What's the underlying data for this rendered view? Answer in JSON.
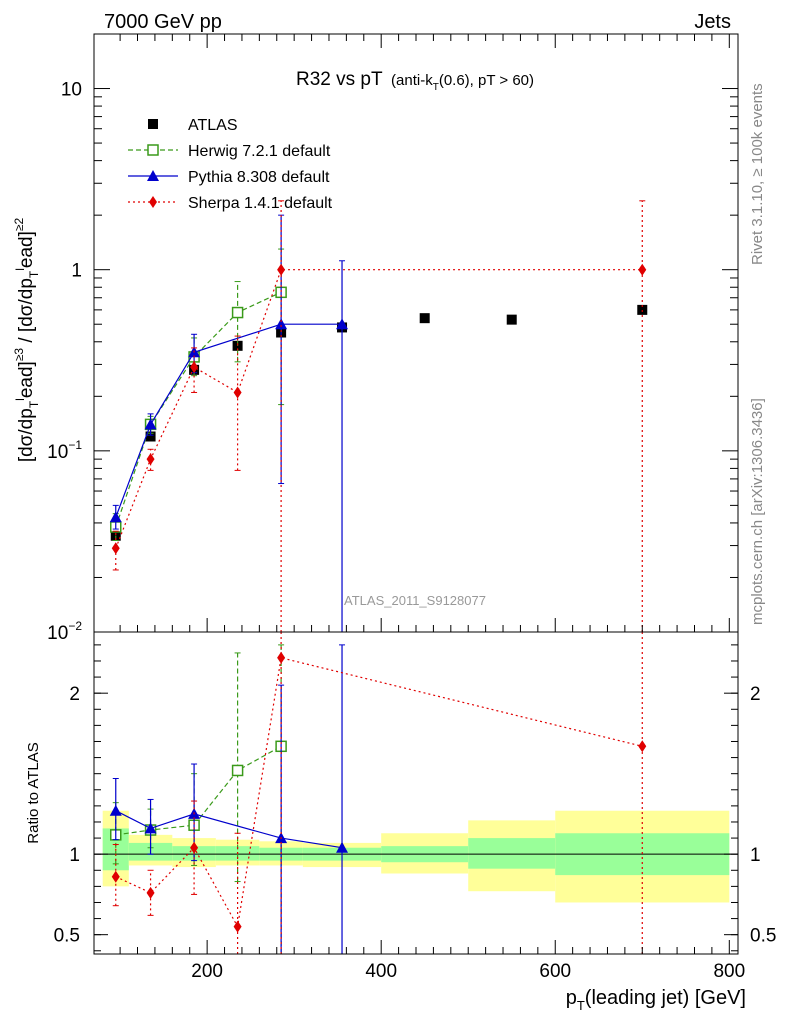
{
  "header": {
    "left": "7000 GeV pp",
    "right": "Jets"
  },
  "side_labels": {
    "top": "Rivet 3.1.10, ≥ 100k events",
    "bottom": "mcplots.cern.ch [arXiv:1306.3436]"
  },
  "colors": {
    "atlas": "#000000",
    "herwig": "#3a9a1a",
    "pythia": "#0000cc",
    "sherpa": "#e00000",
    "band_inner": "#99ff99",
    "band_outer": "#ffff99"
  },
  "chart_data": [
    {
      "type": "scatter",
      "title": "R32 vs pT",
      "title_sub": "(anti-k",
      "title_sub_index": "T",
      "title_sub_rest": "(0.6), pT > 60)",
      "ylabel": "[dσ/dp_T^lead]^≥3 / [dσ/dp_T^lead]^≥2",
      "yscale": "log",
      "ylim": [
        0.01,
        20
      ],
      "xlim": [
        70,
        810
      ],
      "y_ticks": [
        {
          "value": 0.01,
          "label": "10",
          "exp": "−2"
        },
        {
          "value": 0.1,
          "label": "10",
          "exp": "−1"
        },
        {
          "value": 1,
          "label": "1",
          "exp": ""
        },
        {
          "value": 10,
          "label": "10",
          "exp": ""
        }
      ],
      "watermark": "ATLAS_2011_S9128077",
      "legend_position": "top-left",
      "series": [
        {
          "name": "ATLAS",
          "marker": "square",
          "points": [
            {
              "x": 95,
              "y": 0.034
            },
            {
              "x": 135,
              "y": 0.12
            },
            {
              "x": 185,
              "y": 0.28
            },
            {
              "x": 235,
              "y": 0.38
            },
            {
              "x": 285,
              "y": 0.45
            },
            {
              "x": 355,
              "y": 0.48
            },
            {
              "x": 450,
              "y": 0.54
            },
            {
              "x": 550,
              "y": 0.53
            },
            {
              "x": 700,
              "y": 0.6
            }
          ]
        },
        {
          "name": "Herwig 7.2.1 default",
          "marker": "open-square",
          "line": "dashed",
          "points": [
            {
              "x": 95,
              "y": 0.038,
              "lo": 0.032,
              "hi": 0.045
            },
            {
              "x": 135,
              "y": 0.14,
              "lo": 0.125,
              "hi": 0.155
            },
            {
              "x": 185,
              "y": 0.33,
              "lo": 0.26,
              "hi": 0.42
            },
            {
              "x": 235,
              "y": 0.58,
              "lo": 0.31,
              "hi": 0.86
            },
            {
              "x": 285,
              "y": 0.75,
              "lo": 0.18,
              "hi": 1.3
            }
          ]
        },
        {
          "name": "Pythia 8.308 default",
          "marker": "triangle",
          "line": "solid",
          "points": [
            {
              "x": 95,
              "y": 0.043,
              "lo": 0.037,
              "hi": 0.05
            },
            {
              "x": 135,
              "y": 0.14,
              "lo": 0.122,
              "hi": 0.16
            },
            {
              "x": 185,
              "y": 0.35,
              "lo": 0.27,
              "hi": 0.44
            },
            {
              "x": 285,
              "y": 0.5,
              "lo": 0.066,
              "hi": 2.0
            },
            {
              "x": 355,
              "y": 0.5,
              "lo": 0.001,
              "hi": 1.12
            }
          ]
        },
        {
          "name": "Sherpa 1.4.1 default",
          "marker": "diamond",
          "line": "dotted",
          "points": [
            {
              "x": 95,
              "y": 0.029,
              "lo": 0.022,
              "hi": 0.036
            },
            {
              "x": 135,
              "y": 0.09,
              "lo": 0.078,
              "hi": 0.102
            },
            {
              "x": 185,
              "y": 0.29,
              "lo": 0.21,
              "hi": 0.37
            },
            {
              "x": 235,
              "y": 0.21,
              "lo": 0.078,
              "hi": 0.43
            },
            {
              "x": 285,
              "y": 1.0,
              "lo": 0.001,
              "hi": 2.4
            },
            {
              "x": 700,
              "y": 1.0,
              "lo": 0.001,
              "hi": 2.4
            }
          ]
        }
      ]
    },
    {
      "type": "scatter",
      "ylabel": "Ratio to ATLAS",
      "xlabel": "p_T(leading jet) [GeV]",
      "ylim": [
        0.38,
        2.38
      ],
      "xlim": [
        70,
        810
      ],
      "x_ticks": [
        200,
        400,
        600,
        800
      ],
      "y_ticks": [
        {
          "value": 0.5,
          "label": "0.5"
        },
        {
          "value": 1,
          "label": "1"
        },
        {
          "value": 2,
          "label": "2"
        }
      ],
      "bands": [
        {
          "x0": 80,
          "x1": 110,
          "inner": [
            0.9,
            1.16
          ],
          "outer": [
            0.8,
            1.27
          ]
        },
        {
          "x0": 110,
          "x1": 160,
          "inner": [
            0.96,
            1.07
          ],
          "outer": [
            0.93,
            1.12
          ]
        },
        {
          "x0": 160,
          "x1": 210,
          "inner": [
            0.96,
            1.05
          ],
          "outer": [
            0.92,
            1.1
          ]
        },
        {
          "x0": 210,
          "x1": 260,
          "inner": [
            0.96,
            1.05
          ],
          "outer": [
            0.93,
            1.09
          ]
        },
        {
          "x0": 260,
          "x1": 310,
          "inner": [
            0.96,
            1.04
          ],
          "outer": [
            0.93,
            1.08
          ]
        },
        {
          "x0": 310,
          "x1": 400,
          "inner": [
            0.96,
            1.04
          ],
          "outer": [
            0.92,
            1.07
          ]
        },
        {
          "x0": 400,
          "x1": 500,
          "inner": [
            0.95,
            1.05
          ],
          "outer": [
            0.88,
            1.13
          ]
        },
        {
          "x0": 500,
          "x1": 600,
          "inner": [
            0.91,
            1.1
          ],
          "outer": [
            0.77,
            1.21
          ]
        },
        {
          "x0": 600,
          "x1": 800,
          "inner": [
            0.87,
            1.13
          ],
          "outer": [
            0.7,
            1.27
          ]
        }
      ],
      "series": [
        {
          "name": "Herwig 7.2.1 default",
          "points": [
            {
              "x": 95,
              "y": 1.12,
              "lo": 0.94,
              "hi": 1.32
            },
            {
              "x": 135,
              "y": 1.15,
              "lo": 1.04,
              "hi": 1.28
            },
            {
              "x": 185,
              "y": 1.18,
              "lo": 0.93,
              "hi": 1.5
            },
            {
              "x": 235,
              "y": 1.52,
              "lo": 0.83,
              "hi": 2.25
            },
            {
              "x": 285,
              "y": 1.67,
              "lo": 0.38,
              "hi": 2.3
            }
          ]
        },
        {
          "name": "Pythia 8.308 default",
          "points": [
            {
              "x": 95,
              "y": 1.27,
              "lo": 1.09,
              "hi": 1.47
            },
            {
              "x": 135,
              "y": 1.16,
              "lo": 1.0,
              "hi": 1.34
            },
            {
              "x": 185,
              "y": 1.25,
              "lo": 0.96,
              "hi": 1.56
            },
            {
              "x": 285,
              "y": 1.1,
              "lo": 0.38,
              "hi": 2.05
            },
            {
              "x": 355,
              "y": 1.04,
              "lo": 0.38,
              "hi": 2.3
            }
          ]
        },
        {
          "name": "Sherpa 1.4.1 default",
          "points": [
            {
              "x": 95,
              "y": 0.86,
              "lo": 0.68,
              "hi": 1.06
            },
            {
              "x": 135,
              "y": 0.76,
              "lo": 0.62,
              "hi": 0.9
            },
            {
              "x": 185,
              "y": 1.04,
              "lo": 0.75,
              "hi": 1.33
            },
            {
              "x": 235,
              "y": 0.55,
              "lo": 0.38,
              "hi": 1.13
            },
            {
              "x": 285,
              "y": 2.22,
              "lo": 0.38,
              "hi": 2.38
            },
            {
              "x": 700,
              "y": 1.67,
              "lo": 0.38,
              "hi": 2.38
            }
          ]
        }
      ]
    }
  ]
}
